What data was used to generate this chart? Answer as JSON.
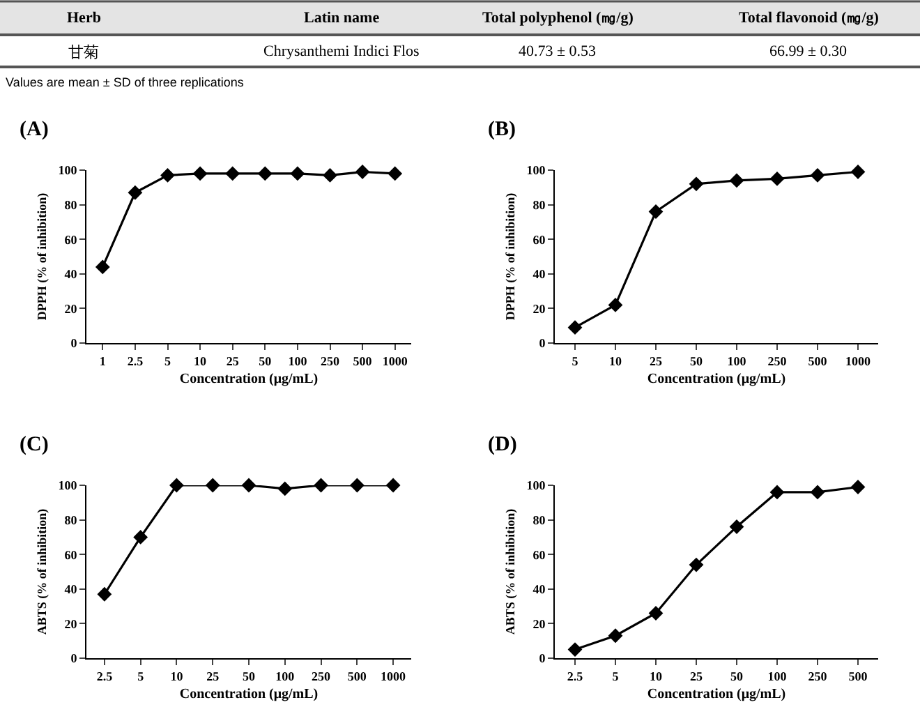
{
  "chart_data": [
    {
      "type": "other",
      "annotations": [
        "Herb",
        "Latin name",
        "Total polyphenol (㎎/g)",
        "Total flavonoid (㎎/g)",
        "甘菊",
        "Chrysanthemi Indici Flos",
        "40.73 ± 0.53",
        "66.99 ± 0.30",
        "Values are mean ± SD of three replications"
      ]
    },
    {
      "type": "line",
      "title": "(A)",
      "xlabel": "Concentration (μg/mL)",
      "ylabel": "DPPH (% of inhibition)",
      "categories": [
        "1",
        "2.5",
        "5",
        "10",
        "25",
        "50",
        "100",
        "250",
        "500",
        "1000"
      ],
      "ylim": [
        0,
        100
      ],
      "yticks": [
        0,
        20,
        40,
        60,
        80,
        100
      ],
      "marker": "diamond",
      "line_style": "solid",
      "series": [
        {
          "color": "#000000",
          "values": [
            44,
            87,
            97,
            98,
            98,
            98,
            98,
            97,
            99,
            98
          ]
        }
      ]
    },
    {
      "type": "line",
      "title": "(B)",
      "xlabel": "Concentration (μg/mL)",
      "ylabel": "DPPH (% of inhibition)",
      "categories": [
        "5",
        "10",
        "25",
        "50",
        "100",
        "250",
        "500",
        "1000"
      ],
      "ylim": [
        0,
        100
      ],
      "yticks": [
        0,
        20,
        40,
        60,
        80,
        100
      ],
      "marker": "diamond",
      "line_style": "solid",
      "series": [
        {
          "color": "#000000",
          "values": [
            9,
            22,
            76,
            92,
            94,
            95,
            97,
            99
          ]
        }
      ]
    },
    {
      "type": "line",
      "title": "(C)",
      "xlabel": "Concentration (μg/mL)",
      "ylabel": "ABTS (% of inhibition)",
      "categories": [
        "2.5",
        "5",
        "10",
        "25",
        "50",
        "100",
        "250",
        "500",
        "1000"
      ],
      "ylim": [
        0,
        100
      ],
      "yticks": [
        0,
        20,
        40,
        60,
        80,
        100
      ],
      "marker": "diamond",
      "line_style": "solid",
      "series": [
        {
          "color": "#000000",
          "values": [
            37,
            70,
            100,
            100,
            100,
            98,
            100,
            100,
            100
          ]
        }
      ]
    },
    {
      "type": "line",
      "title": "(D)",
      "xlabel": "Concentration (μg/mL)",
      "ylabel": "ABTS (% of inhibition)",
      "categories": [
        "2.5",
        "5",
        "10",
        "25",
        "50",
        "100",
        "250",
        "500"
      ],
      "ylim": [
        0,
        100
      ],
      "yticks": [
        0,
        20,
        40,
        60,
        80,
        100
      ],
      "marker": "diamond",
      "line_style": "solid",
      "series": [
        {
          "color": "#000000",
          "values": [
            5,
            13,
            26,
            54,
            76,
            96,
            96,
            99
          ]
        }
      ]
    }
  ]
}
